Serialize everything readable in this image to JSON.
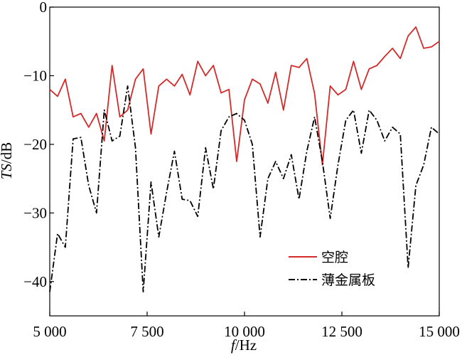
{
  "chart_data": {
    "type": "line",
    "xlabel_italic": "f",
    "xlabel_rest": "/Hz",
    "ylabel_italic": "TS",
    "ylabel_rest": "/dB",
    "xlim": [
      5000,
      15000
    ],
    "ylim": [
      -45,
      0
    ],
    "xticks": [
      5000,
      7500,
      10000,
      12500,
      15000
    ],
    "xtick_labels": [
      "5 000",
      "7 500",
      "10 000",
      "12 500",
      "15 000"
    ],
    "yticks": [
      0,
      -10,
      -20,
      -30,
      -40
    ],
    "ytick_labels": [
      "0",
      "−10",
      "−20",
      "−30",
      "−40"
    ],
    "grid": false,
    "legend_position": "bottom-right",
    "series": [
      {
        "name": "空腔",
        "color": "#d42a2a",
        "style": "solid",
        "x": [
          5000,
          5200,
          5400,
          5600,
          5800,
          6000,
          6200,
          6400,
          6600,
          6800,
          7000,
          7200,
          7400,
          7600,
          7800,
          8000,
          8200,
          8400,
          8600,
          8800,
          9000,
          9200,
          9400,
          9600,
          9800,
          10000,
          10200,
          10400,
          10600,
          10800,
          11000,
          11200,
          11400,
          11600,
          11800,
          12000,
          12200,
          12400,
          12600,
          12800,
          13000,
          13200,
          13400,
          13600,
          13800,
          14000,
          14200,
          14400,
          14600,
          14800,
          15000
        ],
        "y": [
          -12,
          -13,
          -10.5,
          -16,
          -15.5,
          -17.5,
          -15.5,
          -19.5,
          -8.5,
          -16,
          -15,
          -10.5,
          -9,
          -18.5,
          -11.5,
          -10.5,
          -11.5,
          -9.8,
          -12.8,
          -7.9,
          -10,
          -8.5,
          -12.5,
          -12,
          -22.5,
          -13.5,
          -10.5,
          -11.2,
          -14,
          -9.5,
          -15,
          -8.5,
          -8.8,
          -7.5,
          -12.6,
          -23,
          -11.5,
          -12.8,
          -12,
          -7.9,
          -12,
          -9,
          -8.5,
          -7.2,
          -6,
          -7.5,
          -4.2,
          -2.9,
          -6,
          -5.8,
          -5
        ]
      },
      {
        "name": "薄金属板",
        "color": "#000000",
        "style": "dashdot",
        "x": [
          5000,
          5200,
          5400,
          5600,
          5800,
          6000,
          6200,
          6400,
          6600,
          6800,
          7000,
          7200,
          7400,
          7600,
          7800,
          8000,
          8200,
          8400,
          8600,
          8800,
          9000,
          9200,
          9400,
          9600,
          9800,
          10000,
          10200,
          10400,
          10600,
          10800,
          11000,
          11200,
          11400,
          11600,
          11800,
          12000,
          12200,
          12400,
          12600,
          12800,
          13000,
          13200,
          13400,
          13600,
          13800,
          14000,
          14200,
          14400,
          14600,
          14800,
          15000
        ],
        "y": [
          -41.5,
          -33,
          -35,
          -19.2,
          -19,
          -26,
          -30,
          -15,
          -19.5,
          -18.8,
          -11.5,
          -20.5,
          -41.5,
          -25.5,
          -33.5,
          -27,
          -21,
          -28,
          -28.2,
          -30.5,
          -20.5,
          -26.5,
          -18,
          -16,
          -15.5,
          -16.5,
          -20,
          -33.5,
          -25,
          -22.5,
          -25,
          -21.5,
          -28,
          -21,
          -16,
          -22.5,
          -30.8,
          -23,
          -16.5,
          -15,
          -21.3,
          -15,
          -16.5,
          -19.5,
          -17.5,
          -18.5,
          -38,
          -26,
          -23,
          -17.5,
          -18.5
        ]
      }
    ]
  }
}
